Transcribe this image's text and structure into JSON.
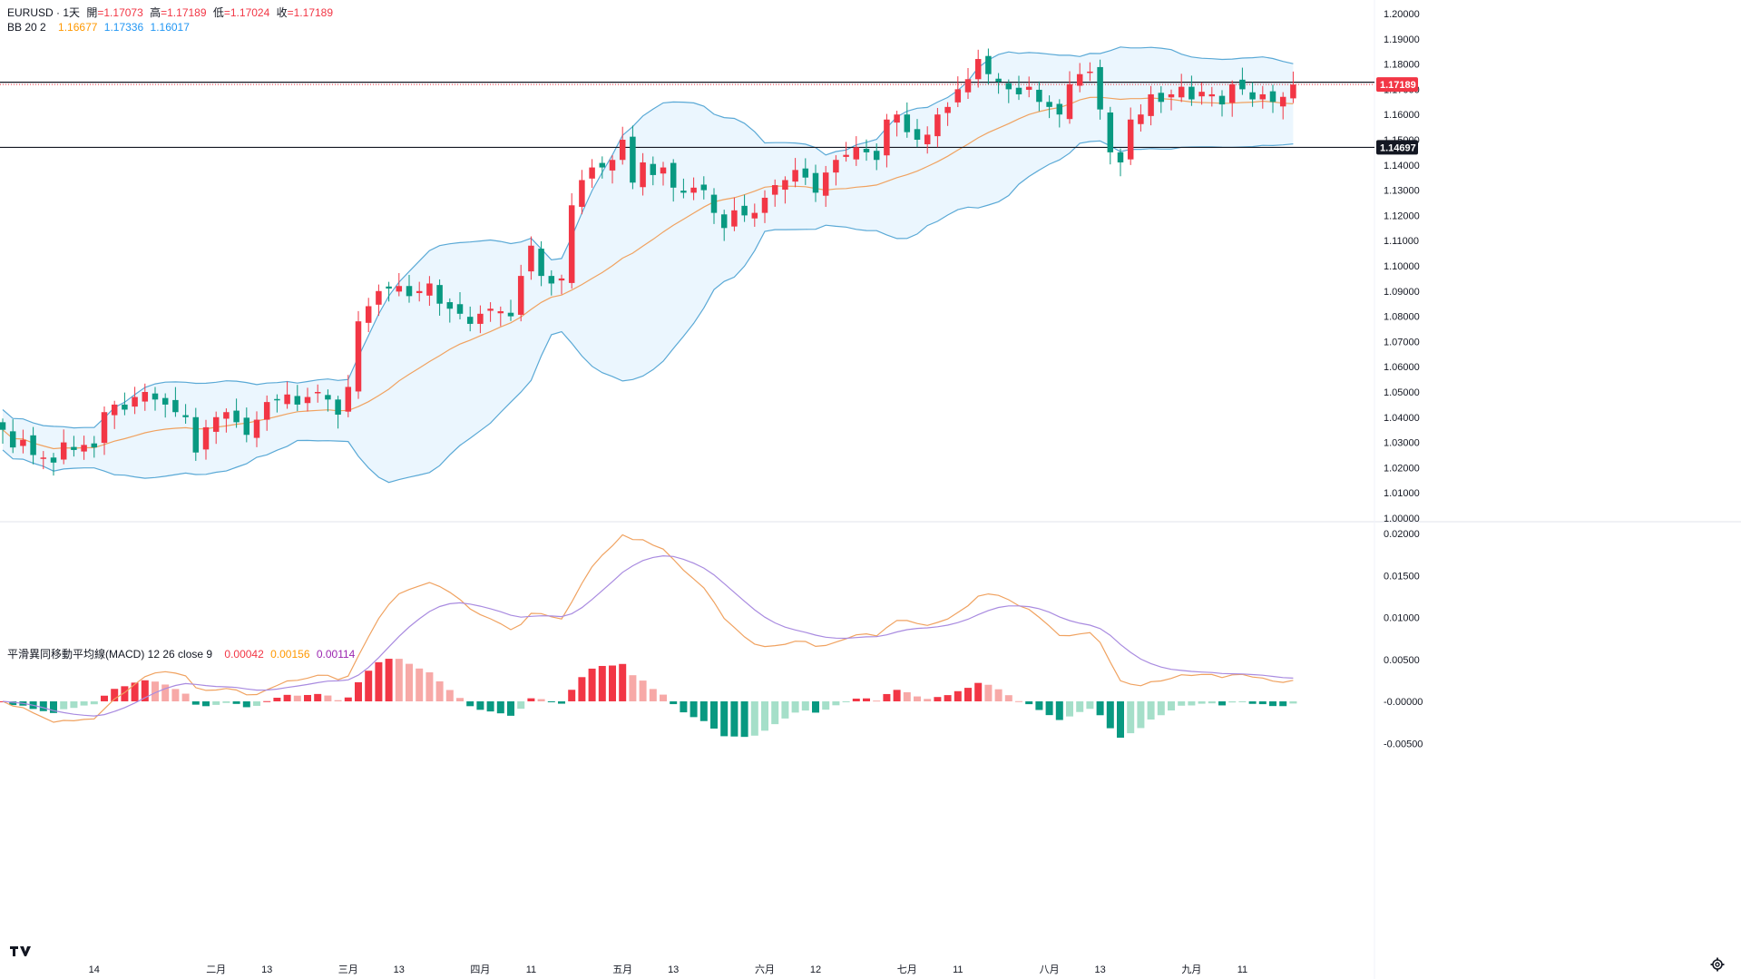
{
  "header": {
    "symbol": "EURUSD · 1天",
    "open_label": "開",
    "open": "=1.17073",
    "high_label": "高",
    "high": "=1.17189",
    "low_label": "低",
    "low": "=1.17024",
    "close_label": "收",
    "close": "=1.17189",
    "bb_label": "BB 20 2",
    "bb_basis": "1.16677",
    "bb_upper": "1.17336",
    "bb_lower": "1.16017"
  },
  "macd_header": {
    "label": "平滑異同移動平均線(MACD) 12 26 close 9",
    "hist": "0.00042",
    "macd": "0.00156",
    "signal": "0.00114"
  },
  "colors": {
    "up": "#f23645",
    "down": "#089981",
    "up_light": "#f7a9a7",
    "down_light": "#a5dfc9",
    "bb_line": "#5aa9d6",
    "bb_fill": "#e3f2fd",
    "basis": "#f0a260",
    "macd_line": "#f0a260",
    "signal_line": "#a98be0"
  },
  "chart_data": {
    "type": "candlestick",
    "symbol": "EURUSD",
    "interval": "1天",
    "ylim": [
      1.0,
      1.2
    ],
    "y_ticks": [
      "1.20000",
      "1.19000",
      "1.18000",
      "1.17000",
      "1.16000",
      "1.15000",
      "1.14000",
      "1.13000",
      "1.12000",
      "1.11000",
      "1.10000",
      "1.09000",
      "1.08000",
      "1.07000",
      "1.06000",
      "1.05000",
      "1.04000",
      "1.03000",
      "1.02000",
      "1.01000",
      "1.00000"
    ],
    "x_labels": [
      "14",
      "二月",
      "13",
      "三月",
      "13",
      "四月",
      "11",
      "五月",
      "13",
      "六月",
      "12",
      "七月",
      "11",
      "八月",
      "13",
      "九月",
      "11"
    ],
    "x_label_index": [
      9,
      21,
      26,
      34,
      39,
      47,
      52,
      61,
      66,
      75,
      80,
      89,
      94,
      103,
      108,
      117,
      122
    ],
    "price_levels": [
      {
        "value": 1.17189,
        "label": "1.17189",
        "color": "#f23645"
      },
      {
        "value": 1.14697,
        "label": "1.14697",
        "color": "#131722"
      }
    ],
    "horizontal_lines": [
      1.1728,
      1.14697
    ],
    "closes": [
      1.035,
      1.028,
      1.031,
      1.025,
      1.024,
      1.022,
      1.03,
      1.027,
      1.029,
      1.028,
      1.042,
      1.045,
      1.043,
      1.048,
      1.05,
      1.047,
      1.045,
      1.042,
      1.04,
      1.026,
      1.036,
      1.04,
      1.042,
      1.038,
      1.033,
      1.039,
      1.046,
      1.047,
      1.049,
      1.045,
      1.048,
      1.05,
      1.047,
      1.041,
      1.052,
      1.078,
      1.084,
      1.09,
      1.091,
      1.092,
      1.088,
      1.09,
      1.093,
      1.085,
      1.083,
      1.081,
      1.077,
      1.081,
      1.083,
      1.082,
      1.08,
      1.096,
      1.108,
      1.096,
      1.093,
      1.095,
      1.124,
      1.134,
      1.139,
      1.139,
      1.142,
      1.15,
      1.133,
      1.141,
      1.136,
      1.139,
      1.131,
      1.129,
      1.131,
      1.13,
      1.121,
      1.115,
      1.122,
      1.12,
      1.121,
      1.127,
      1.132,
      1.134,
      1.138,
      1.135,
      1.129,
      1.137,
      1.142,
      1.144,
      1.147,
      1.145,
      1.142,
      1.158,
      1.16,
      1.153,
      1.15,
      1.152,
      1.16,
      1.163,
      1.17,
      1.174,
      1.182,
      1.176,
      1.173,
      1.17,
      1.168,
      1.171,
      1.165,
      1.163,
      1.16,
      1.172,
      1.176,
      1.177,
      1.162,
      1.145,
      1.141,
      1.158,
      1.16,
      1.168,
      1.165,
      1.168,
      1.171,
      1.166,
      1.169,
      1.168,
      1.164,
      1.172,
      1.17,
      1.166,
      1.168,
      1.165,
      1.167,
      1.17189
    ],
    "bb": {
      "period": 20,
      "mult": 2,
      "basis_last": 1.16677,
      "upper_last": 1.17336,
      "lower_last": 1.16017
    },
    "macd": {
      "params": [
        12,
        26,
        9
      ],
      "ylim": [
        -0.0075,
        0.02
      ],
      "y_ticks": [
        "0.02000",
        "0.01500",
        "0.01000",
        "0.00500",
        "-0.00000",
        "-0.00500"
      ],
      "hist_last": 0.00042,
      "macd_last": 0.00156,
      "signal_last": 0.00114
    }
  }
}
